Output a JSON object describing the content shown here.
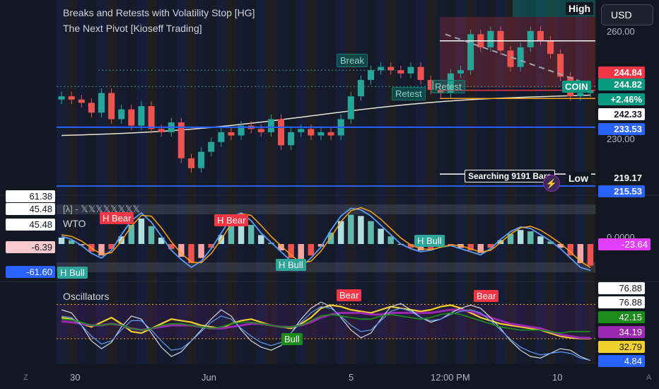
{
  "header": {
    "indicator_1": "Breaks and Retests with Volatility Stop [HG]",
    "indicator_2": "The Next Pivot [Kioseff Trading]",
    "currency_button": "USD",
    "high_label": "High",
    "low_label": "Low",
    "searching_label": "Searching 9191 Bars",
    "symbol_label": "COIN"
  },
  "pane_titles": {
    "wto": "WTO",
    "oscillators": "Oscillators",
    "lambda": "[λ] - 𝕏𝕏𝕏𝕏𝕏𝕏𝕏𝕏"
  },
  "price_axis": {
    "ticks": [
      "260.00",
      "230.00"
    ],
    "labels": [
      {
        "text": "244.84",
        "bg": "#f23645",
        "fg": "#ffffff"
      },
      {
        "text": "244.82",
        "bg": "#089981",
        "fg": "#ffffff"
      },
      {
        "text": "+2.46%",
        "bg": "#089981",
        "fg": "#ffffff"
      },
      {
        "text": "242.33",
        "bg": "#ffffff",
        "fg": "#131722"
      },
      {
        "text": "233.53",
        "bg": "#2962ff",
        "fg": "#ffffff"
      },
      {
        "text": "219.17",
        "bg": "#131722",
        "fg": "#ffffff"
      },
      {
        "text": "215.53",
        "bg": "#2962ff",
        "fg": "#ffffff"
      }
    ]
  },
  "wto_axis": {
    "left_labels": [
      {
        "text": "61.38",
        "bg": "#ffffff",
        "fg": "#131722"
      },
      {
        "text": "45.48",
        "bg": "#ffffff",
        "fg": "#131722"
      },
      {
        "text": "45.48",
        "bg": "#ffffff",
        "fg": "#131722"
      },
      {
        "text": "-6.39",
        "bg": "#f8c9cf",
        "fg": "#131722"
      },
      {
        "text": "-61.60",
        "bg": "#2962ff",
        "fg": "#ffffff"
      }
    ],
    "right_tick": "0.0000",
    "right_label": {
      "text": "-23.64",
      "bg": "#e040fb",
      "fg": "#ffffff"
    }
  },
  "osc_axis": {
    "labels": [
      {
        "text": "76.88",
        "bg": "#ffffff",
        "fg": "#131722"
      },
      {
        "text": "76.88",
        "bg": "#ffffff",
        "fg": "#131722"
      },
      {
        "text": "42.15",
        "bg": "#1b8b1b",
        "fg": "#ffffff"
      },
      {
        "text": "34.19",
        "bg": "#9c27b0",
        "fg": "#ffffff"
      },
      {
        "text": "32.79",
        "bg": "#f2d12f",
        "fg": "#131722"
      },
      {
        "text": "4.84",
        "bg": "#2962ff",
        "fg": "#ffffff"
      }
    ]
  },
  "time_axis": {
    "ticks": [
      "30",
      "Jun",
      "5",
      "12:00 PM",
      "10"
    ]
  },
  "annotations": {
    "break": "Break",
    "retest_1": "Retest",
    "retest_2": "Retest",
    "h_bear_1": "H Bear",
    "h_bear_2": "H Bear",
    "h_bull_1": "H Bull",
    "h_bull_2": "H Bull",
    "h_bull_3": "H Bull",
    "bear_1": "Bear",
    "bear_2": "Bear",
    "bull_1": "Bull"
  },
  "footer": {
    "z_button": "Z",
    "a_button": "A"
  },
  "colors": {
    "background": "#131722",
    "up": "#26a69a",
    "down": "#ef5350",
    "blue_line": "#2962ff",
    "orange_line": "#f7a21b",
    "white_line": "#ffffff"
  },
  "chart_data": [
    {
      "type": "line",
      "pane": "price",
      "series": [
        {
          "name": "COIN",
          "values": [
            243,
            242,
            241,
            238,
            244,
            236,
            239,
            234,
            240,
            233,
            232,
            235,
            224,
            221,
            226,
            229,
            232,
            231,
            234,
            233,
            232,
            236,
            228,
            232,
            233,
            231,
            232,
            231,
            236,
            243,
            248,
            251,
            252,
            251,
            250,
            252,
            248,
            245,
            244,
            250,
            251,
            262,
            258,
            263,
            257,
            252,
            258,
            263,
            260,
            256,
            249,
            243,
            244,
            245
          ]
        }
      ],
      "price_levels": [
        260,
        244.84,
        244.82,
        242.33,
        233.53,
        230,
        219.17,
        215.53
      ]
    },
    {
      "type": "bar",
      "pane": "WTO",
      "values": [
        10,
        6,
        -2,
        -12,
        -18,
        -8,
        12,
        30,
        40,
        28,
        10,
        -8,
        -20,
        -30,
        -22,
        -6,
        14,
        34,
        40,
        30,
        14,
        2,
        -10,
        -22,
        -30,
        -18,
        -4,
        18,
        36,
        46,
        44,
        36,
        24,
        12,
        0,
        -6,
        -10,
        -8,
        -4,
        -2,
        -6,
        -10,
        -14,
        -6,
        6,
        16,
        22,
        20,
        12,
        4,
        -6,
        -18,
        -30,
        -34
      ]
    },
    {
      "type": "line",
      "pane": "Oscillators",
      "series": [
        {
          "name": "yellow",
          "values": [
            60,
            58,
            52,
            48,
            54,
            60,
            52,
            42,
            40,
            46,
            52,
            58,
            56,
            54,
            50,
            48,
            46,
            52,
            56,
            58,
            54,
            50,
            48,
            46,
            52,
            60,
            72,
            76,
            74,
            70,
            68,
            66,
            70,
            74,
            72,
            70,
            68,
            70,
            74,
            76,
            72,
            66,
            60,
            56,
            52,
            50,
            48,
            46,
            44,
            40,
            36,
            34,
            33,
            33
          ]
        },
        {
          "name": "purple",
          "values": [
            55,
            54,
            52,
            50,
            50,
            52,
            50,
            46,
            44,
            46,
            48,
            50,
            50,
            50,
            48,
            46,
            46,
            48,
            50,
            52,
            52,
            50,
            48,
            48,
            50,
            54,
            60,
            64,
            66,
            66,
            66,
            64,
            64,
            66,
            66,
            66,
            66,
            66,
            68,
            70,
            70,
            68,
            64,
            60,
            56,
            52,
            50,
            48,
            46,
            42,
            38,
            36,
            34,
            34
          ]
        },
        {
          "name": "white",
          "values": [
            70,
            66,
            50,
            30,
            20,
            28,
            48,
            62,
            58,
            40,
            22,
            10,
            16,
            30,
            44,
            58,
            70,
            62,
            44,
            30,
            22,
            18,
            24,
            40,
            58,
            72,
            80,
            74,
            60,
            44,
            34,
            40,
            58,
            74,
            78,
            70,
            60,
            54,
            58,
            66,
            72,
            76,
            72,
            60,
            46,
            30,
            18,
            10,
            8,
            14,
            20,
            18,
            10,
            5
          ]
        },
        {
          "name": "blue",
          "values": [
            62,
            60,
            50,
            36,
            26,
            30,
            44,
            56,
            56,
            44,
            30,
            18,
            20,
            30,
            42,
            54,
            62,
            58,
            46,
            36,
            28,
            24,
            28,
            40,
            54,
            66,
            74,
            72,
            62,
            50,
            42,
            44,
            56,
            68,
            72,
            68,
            60,
            56,
            58,
            64,
            68,
            70,
            66,
            56,
            44,
            32,
            22,
            16,
            12,
            14,
            16,
            14,
            8,
            5
          ]
        },
        {
          "name": "green",
          "values": [
            58,
            57,
            54,
            50,
            50,
            52,
            50,
            46,
            44,
            46,
            50,
            52,
            52,
            50,
            48,
            46,
            48,
            52,
            54,
            54,
            52,
            50,
            48,
            48,
            50,
            56,
            62,
            64,
            62,
            60,
            58,
            58,
            62,
            64,
            62,
            60,
            58,
            60,
            64,
            66,
            64,
            60,
            56,
            52,
            48,
            46,
            44,
            44,
            44,
            42,
            40,
            42,
            42,
            42
          ]
        }
      ],
      "levels": [
        76.88,
        32.79
      ]
    }
  ]
}
